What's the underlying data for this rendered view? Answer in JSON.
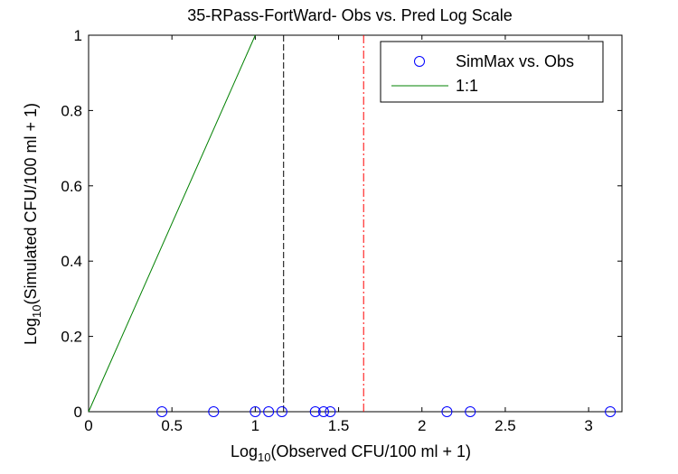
{
  "chart_data": {
    "type": "scatter",
    "title": "35-RPass-FortWard- Obs vs. Pred Log Scale",
    "xlabel": {
      "prefix": "Log",
      "sub": "10",
      "suffix": "(Observed CFU/100 ml + 1)"
    },
    "ylabel": {
      "prefix": "Log",
      "sub": "10",
      "suffix": "(Simulated CFU/100 ml + 1)"
    },
    "xlim": [
      0,
      3.2
    ],
    "ylim": [
      0,
      1
    ],
    "xticks": [
      0,
      0.5,
      1,
      1.5,
      2,
      2.5,
      3
    ],
    "xtick_labels": [
      "0",
      "0.5",
      "1",
      "1.5",
      "2",
      "2.5",
      "3"
    ],
    "yticks": [
      0,
      0.2,
      0.4,
      0.6,
      0.8,
      1
    ],
    "ytick_labels": [
      "0",
      "0.2",
      "0.4",
      "0.6",
      "0.8",
      "1"
    ],
    "series": [
      {
        "name": "SimMax vs. Obs",
        "kind": "markers",
        "marker": "circle",
        "color": "#0000ff",
        "x": [
          0.44,
          0.75,
          1.0,
          1.08,
          1.16,
          1.36,
          1.41,
          1.45,
          2.15,
          2.29,
          3.13
        ],
        "y": [
          0,
          0,
          0,
          0,
          0,
          0,
          0,
          0,
          0,
          0,
          0
        ]
      },
      {
        "name": "1:1",
        "kind": "line",
        "color": "#008000",
        "x": [
          0,
          1
        ],
        "y": [
          0,
          1
        ]
      }
    ],
    "vertical_lines": [
      {
        "x": 1.17,
        "color": "#000000",
        "style": "dashed"
      },
      {
        "x": 1.65,
        "color": "#ff0000",
        "style": "dashdot"
      }
    ],
    "legend_position": "top-right",
    "grid": false
  }
}
